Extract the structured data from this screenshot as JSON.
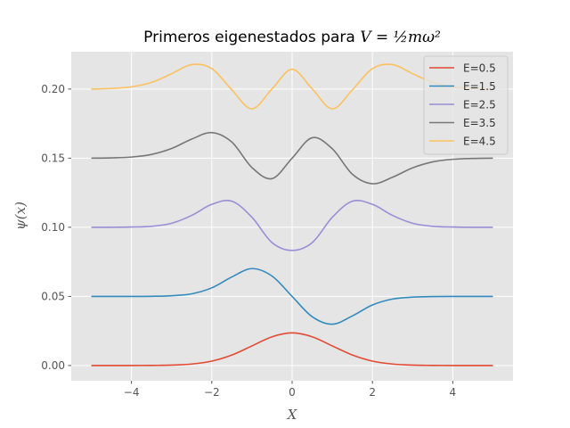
{
  "chart_data": {
    "type": "line",
    "title": {
      "prefix": "Primeros eigenestados para ",
      "formula": "V = ½mω²"
    },
    "xlabel": "X",
    "ylabel": "ψ(x)",
    "xlim": [
      -5.5,
      5.5
    ],
    "ylim": [
      -0.011,
      0.227
    ],
    "xticks": [
      -4,
      -2,
      0,
      2,
      4
    ],
    "xtick_labels": [
      "−4",
      "−2",
      "0",
      "2",
      "4"
    ],
    "yticks": [
      0.0,
      0.05,
      0.1,
      0.15,
      0.2
    ],
    "ytick_labels": [
      "0.00",
      "0.05",
      "0.10",
      "0.15",
      "0.20"
    ],
    "grid": true,
    "legend_position": "top-right",
    "x_range": [
      -5,
      5
    ],
    "series": [
      {
        "name": "E=0.5",
        "color": "#E24A33",
        "x": [
          -5,
          -4.5,
          -4,
          -3.5,
          -3,
          -2.5,
          -2,
          -1.5,
          -1,
          -0.5,
          0,
          0.5,
          1,
          1.5,
          2,
          2.5,
          3,
          3.5,
          4,
          4.5,
          5
        ],
        "y": [
          0.0,
          0.0,
          0.0,
          0.0001,
          0.0003,
          0.0011,
          0.0032,
          0.0076,
          0.0142,
          0.0208,
          0.0236,
          0.0208,
          0.0142,
          0.0076,
          0.0032,
          0.0011,
          0.0003,
          0.0001,
          0.0,
          0.0,
          0.0
        ]
      },
      {
        "name": "E=1.5",
        "color": "#348ABD",
        "x": [
          -5,
          -4.5,
          -4,
          -3.5,
          -3,
          -2.5,
          -2,
          -1.5,
          -1,
          -0.5,
          0,
          0.5,
          1,
          1.5,
          2,
          2.5,
          3,
          3.5,
          4,
          4.5,
          5
        ],
        "y": [
          0.05,
          0.05,
          0.05,
          0.0501,
          0.0505,
          0.0519,
          0.0562,
          0.0641,
          0.0701,
          0.0647,
          0.05,
          0.0353,
          0.0299,
          0.0359,
          0.0438,
          0.0481,
          0.0495,
          0.0499,
          0.05,
          0.05,
          0.05
        ]
      },
      {
        "name": "E=2.5",
        "color": "#988ED5",
        "x": [
          -5,
          -4.5,
          -4,
          -3.5,
          -3,
          -2.5,
          -2,
          -1.5,
          -1,
          -0.5,
          0,
          0.5,
          1,
          1.5,
          2,
          2.5,
          3,
          3.5,
          4,
          4.5,
          5
        ],
        "y": [
          0.1,
          0.1,
          0.1002,
          0.1007,
          0.1029,
          0.1086,
          0.1166,
          0.1189,
          0.1072,
          0.0889,
          0.0833,
          0.0889,
          0.1072,
          0.1189,
          0.1166,
          0.1086,
          0.1029,
          0.1007,
          0.1002,
          0.1,
          0.1
        ]
      },
      {
        "name": "E=3.5",
        "color": "#777777",
        "x": [
          -5,
          -4.5,
          -4,
          -3.5,
          -3,
          -2.5,
          -2,
          -1.5,
          -1,
          -0.5,
          0,
          0.5,
          1,
          1.5,
          2,
          2.5,
          3,
          3.5,
          4,
          4.5,
          5
        ],
        "y": [
          0.15,
          0.1502,
          0.1508,
          0.1527,
          0.157,
          0.1638,
          0.1685,
          0.1616,
          0.1432,
          0.1352,
          0.15,
          0.1648,
          0.1568,
          0.1384,
          0.1315,
          0.1362,
          0.143,
          0.1473,
          0.1492,
          0.1498,
          0.15
        ]
      },
      {
        "name": "E=4.5",
        "color": "#FBC15E",
        "x": [
          -5,
          -4.5,
          -4,
          -3.5,
          -3,
          -2.5,
          -2,
          -1.5,
          -1,
          -0.5,
          0,
          0.5,
          1,
          1.5,
          2,
          2.5,
          3,
          3.5,
          4,
          4.5,
          5
        ],
        "y": [
          0.2,
          0.2004,
          0.2016,
          0.2048,
          0.2111,
          0.2177,
          0.2148,
          0.1994,
          0.1857,
          0.2001,
          0.2143,
          0.2001,
          0.1857,
          0.1994,
          0.2148,
          0.2177,
          0.2111,
          0.2048,
          0.2016,
          0.2004,
          0.2
        ]
      }
    ]
  }
}
